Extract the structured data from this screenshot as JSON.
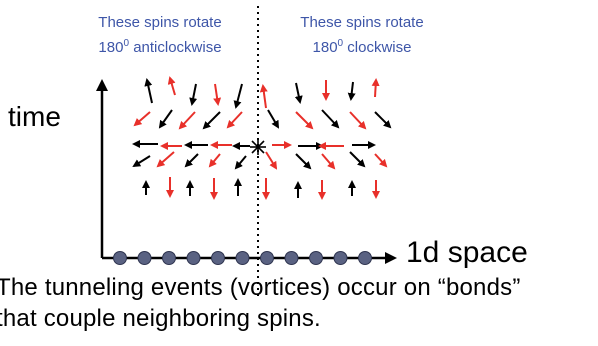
{
  "labels": {
    "time": "time",
    "space": "1d space",
    "caption_line1": "The tunneling events (vortices) occur on “bonds”",
    "caption_line2": "that couple neighboring spins."
  },
  "notes": {
    "left": {
      "line1": "These spins rotate",
      "degrees": "180",
      "sup": "0",
      "direction": "anticlockwise"
    },
    "right": {
      "line1": "These spins rotate",
      "degrees": "180",
      "sup": "0",
      "direction": "clockwise"
    }
  },
  "colors": {
    "black_spin": "#000000",
    "red_spin": "#e8302a",
    "site": "#5a6282",
    "note_text": "#3e56a8"
  },
  "lattice_sites": 11
}
